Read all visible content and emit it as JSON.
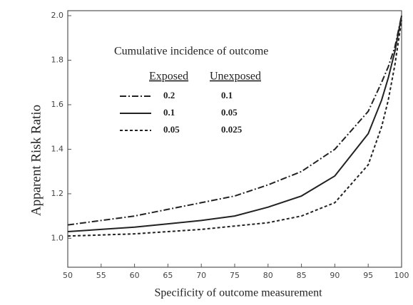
{
  "chart_data": {
    "type": "line",
    "x_label": "Specificity of outcome measurement",
    "y_label": "Apparent Risk Ratio",
    "x": [
      50,
      55,
      60,
      65,
      70,
      75,
      80,
      85,
      90,
      95,
      97,
      98,
      99,
      100
    ],
    "xlim": [
      50,
      100
    ],
    "xticks": [
      50,
      55,
      60,
      65,
      70,
      75,
      80,
      85,
      90,
      95,
      100
    ],
    "ylim": [
      0.87,
      2.0
    ],
    "yticks": [
      {
        "value": 1.0,
        "label": "1.0"
      },
      {
        "value": 1.2,
        "label": "1.2"
      },
      {
        "value": 1.4,
        "label": "1.4"
      },
      {
        "value": 1.6,
        "label": "1.6"
      },
      {
        "value": 1.8,
        "label": "1.8"
      },
      {
        "value": 2.0,
        "label": "2.0"
      }
    ],
    "legend": {
      "title": "Cumulative incidence of outcome",
      "headers": [
        "Exposed",
        "Unexposed"
      ]
    },
    "series": [
      {
        "exposed": "0.2",
        "unexposed": "0.1",
        "color": "#222",
        "dash": "9 3 2 3",
        "values": [
          1.06,
          1.08,
          1.1,
          1.13,
          1.16,
          1.19,
          1.24,
          1.3,
          1.4,
          1.57,
          1.7,
          1.77,
          1.86,
          2.0
        ]
      },
      {
        "exposed": "0.1",
        "unexposed": "0.05",
        "color": "#222",
        "dash": "none",
        "values": [
          1.03,
          1.04,
          1.05,
          1.065,
          1.08,
          1.1,
          1.14,
          1.19,
          1.28,
          1.47,
          1.62,
          1.72,
          1.84,
          2.0
        ]
      },
      {
        "exposed": "0.05",
        "unexposed": "0.025",
        "color": "#222",
        "dash": "4 3",
        "values": [
          1.01,
          1.015,
          1.02,
          1.03,
          1.04,
          1.055,
          1.07,
          1.1,
          1.16,
          1.33,
          1.5,
          1.62,
          1.78,
          1.98
        ]
      }
    ]
  }
}
